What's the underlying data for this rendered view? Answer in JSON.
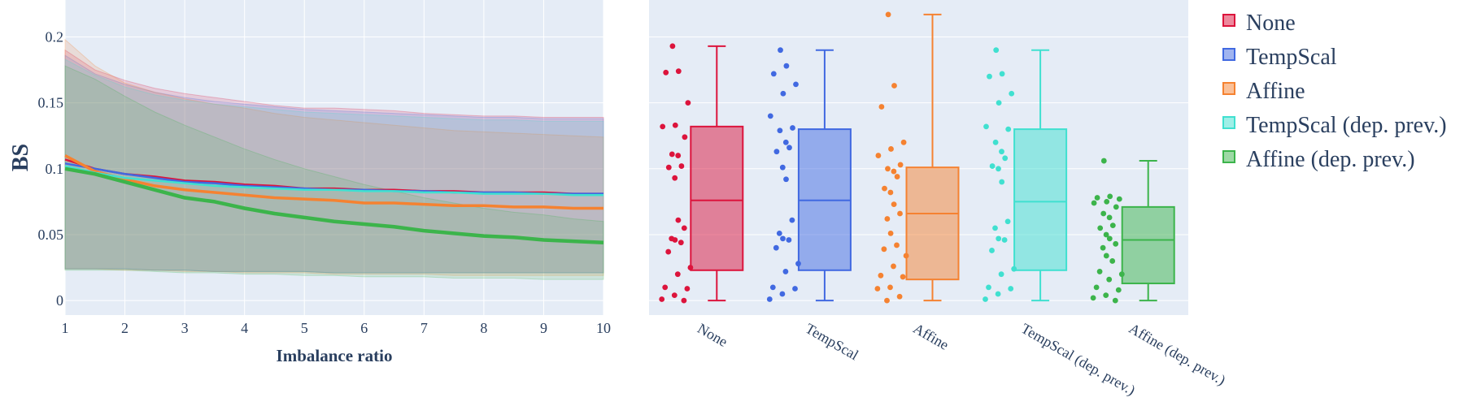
{
  "chart_data": [
    {
      "type": "line",
      "xlabel": "Imbalance ratio",
      "ylabel": "BS",
      "xlim": [
        1,
        10
      ],
      "ylim": [
        -0.011,
        0.228
      ],
      "xticks": [
        1,
        2,
        3,
        4,
        5,
        6,
        7,
        8,
        9,
        10
      ],
      "yticks": [
        0,
        0.05,
        0.1,
        0.15,
        0.2
      ],
      "ytick_labels": [
        "0",
        "0.05",
        "0.1",
        "0.15",
        "0.2"
      ],
      "grid": true,
      "background": "#e5ecf6",
      "x": [
        1,
        1.5,
        2,
        2.5,
        3,
        3.5,
        4,
        4.5,
        5,
        5.5,
        6,
        6.5,
        7,
        7.5,
        8,
        8.5,
        9,
        9.5,
        10
      ],
      "series": [
        {
          "name": "None",
          "color": "#dc143c",
          "mean": [
            0.107,
            0.1,
            0.096,
            0.094,
            0.091,
            0.09,
            0.088,
            0.087,
            0.085,
            0.085,
            0.084,
            0.084,
            0.083,
            0.083,
            0.082,
            0.082,
            0.082,
            0.081,
            0.081
          ],
          "upper": [
            0.19,
            0.175,
            0.167,
            0.161,
            0.157,
            0.154,
            0.151,
            0.148,
            0.146,
            0.146,
            0.145,
            0.144,
            0.142,
            0.141,
            0.14,
            0.14,
            0.139,
            0.139,
            0.139
          ],
          "lower": [
            0.024,
            0.024,
            0.024,
            0.023,
            0.023,
            0.022,
            0.022,
            0.022,
            0.022,
            0.021,
            0.021,
            0.021,
            0.021,
            0.021,
            0.021,
            0.021,
            0.021,
            0.021,
            0.021
          ]
        },
        {
          "name": "TempScal",
          "color": "#4169e1",
          "mean": [
            0.104,
            0.1,
            0.096,
            0.093,
            0.09,
            0.089,
            0.087,
            0.086,
            0.085,
            0.084,
            0.084,
            0.083,
            0.083,
            0.082,
            0.082,
            0.082,
            0.081,
            0.081,
            0.081
          ],
          "upper": [
            0.186,
            0.172,
            0.164,
            0.158,
            0.154,
            0.151,
            0.149,
            0.147,
            0.145,
            0.144,
            0.143,
            0.142,
            0.141,
            0.14,
            0.139,
            0.139,
            0.138,
            0.138,
            0.138
          ],
          "lower": [
            0.024,
            0.024,
            0.024,
            0.023,
            0.023,
            0.022,
            0.022,
            0.022,
            0.022,
            0.021,
            0.021,
            0.021,
            0.021,
            0.021,
            0.021,
            0.021,
            0.021,
            0.021,
            0.021
          ]
        },
        {
          "name": "Affine",
          "color": "#f58231",
          "mean": [
            0.11,
            0.098,
            0.092,
            0.087,
            0.084,
            0.082,
            0.08,
            0.078,
            0.077,
            0.076,
            0.074,
            0.074,
            0.073,
            0.072,
            0.072,
            0.071,
            0.071,
            0.07,
            0.07
          ],
          "upper": [
            0.198,
            0.178,
            0.165,
            0.158,
            0.153,
            0.149,
            0.146,
            0.142,
            0.139,
            0.137,
            0.135,
            0.133,
            0.131,
            0.129,
            0.128,
            0.127,
            0.126,
            0.125,
            0.124
          ],
          "lower": [
            0.024,
            0.024,
            0.023,
            0.023,
            0.022,
            0.022,
            0.021,
            0.021,
            0.021,
            0.02,
            0.02,
            0.02,
            0.02,
            0.019,
            0.019,
            0.019,
            0.019,
            0.019,
            0.019
          ]
        },
        {
          "name": "TempScal (dep. prev.)",
          "color": "#40e0d0",
          "mean": [
            0.102,
            0.097,
            0.093,
            0.091,
            0.089,
            0.087,
            0.086,
            0.085,
            0.084,
            0.084,
            0.083,
            0.083,
            0.082,
            0.082,
            0.081,
            0.081,
            0.081,
            0.08,
            0.08
          ],
          "upper": [
            0.183,
            0.171,
            0.162,
            0.156,
            0.152,
            0.149,
            0.147,
            0.145,
            0.143,
            0.142,
            0.141,
            0.14,
            0.139,
            0.138,
            0.137,
            0.137,
            0.136,
            0.136,
            0.136
          ],
          "lower": [
            0.024,
            0.024,
            0.024,
            0.023,
            0.023,
            0.022,
            0.022,
            0.022,
            0.022,
            0.021,
            0.021,
            0.021,
            0.021,
            0.021,
            0.021,
            0.021,
            0.021,
            0.021,
            0.021
          ]
        },
        {
          "name": "Affine (dep. prev.)",
          "color": "#3cb44b",
          "mean": [
            0.1,
            0.096,
            0.09,
            0.084,
            0.078,
            0.075,
            0.07,
            0.066,
            0.063,
            0.06,
            0.058,
            0.056,
            0.053,
            0.051,
            0.049,
            0.048,
            0.046,
            0.045,
            0.044
          ],
          "upper": [
            0.178,
            0.168,
            0.155,
            0.143,
            0.133,
            0.124,
            0.115,
            0.107,
            0.1,
            0.094,
            0.088,
            0.083,
            0.078,
            0.074,
            0.07,
            0.067,
            0.065,
            0.062,
            0.06
          ],
          "lower": [
            0.023,
            0.023,
            0.023,
            0.022,
            0.021,
            0.021,
            0.02,
            0.02,
            0.019,
            0.019,
            0.018,
            0.018,
            0.018,
            0.017,
            0.017,
            0.017,
            0.016,
            0.016,
            0.016
          ]
        }
      ]
    },
    {
      "type": "box",
      "ylim": [
        -0.011,
        0.228
      ],
      "yticks": [
        0,
        0.05,
        0.1,
        0.15,
        0.2
      ],
      "grid": true,
      "background": "#e5ecf6",
      "boxpoints": "all",
      "categories": [
        "None",
        "TempScal",
        "Affine",
        "TempScal (dep. prev.)",
        "Affine (dep. prev.)"
      ],
      "series": [
        {
          "name": "None",
          "color": "#dc143c",
          "min": 0.0,
          "q1": 0.023,
          "median": 0.076,
          "q3": 0.132,
          "max": 0.193,
          "points": [
            0.193,
            0.174,
            0.173,
            0.15,
            0.133,
            0.132,
            0.124,
            0.111,
            0.11,
            0.102,
            0.101,
            0.093,
            0.061,
            0.055,
            0.047,
            0.046,
            0.044,
            0.037,
            0.025,
            0.02,
            0.01,
            0.009,
            0.004,
            0.001,
            0.0
          ]
        },
        {
          "name": "TempScal",
          "color": "#4169e1",
          "min": 0.0,
          "q1": 0.023,
          "median": 0.076,
          "q3": 0.13,
          "max": 0.19,
          "points": [
            0.19,
            0.178,
            0.172,
            0.164,
            0.157,
            0.14,
            0.131,
            0.129,
            0.12,
            0.116,
            0.113,
            0.101,
            0.092,
            0.061,
            0.051,
            0.047,
            0.046,
            0.04,
            0.028,
            0.022,
            0.01,
            0.009,
            0.005,
            0.001
          ]
        },
        {
          "name": "Affine",
          "color": "#f58231",
          "min": 0.0,
          "q1": 0.016,
          "median": 0.066,
          "q3": 0.101,
          "max": 0.217,
          "points": [
            0.217,
            0.163,
            0.147,
            0.12,
            0.115,
            0.11,
            0.103,
            0.1,
            0.098,
            0.094,
            0.085,
            0.082,
            0.073,
            0.066,
            0.062,
            0.051,
            0.042,
            0.039,
            0.034,
            0.026,
            0.019,
            0.018,
            0.01,
            0.009,
            0.003,
            0.0
          ]
        },
        {
          "name": "TempScal (dep. prev.)",
          "color": "#40e0d0",
          "min": 0.0,
          "q1": 0.023,
          "median": 0.075,
          "q3": 0.13,
          "max": 0.19,
          "points": [
            0.19,
            0.172,
            0.17,
            0.157,
            0.15,
            0.132,
            0.13,
            0.12,
            0.113,
            0.108,
            0.102,
            0.1,
            0.09,
            0.06,
            0.055,
            0.047,
            0.046,
            0.038,
            0.024,
            0.02,
            0.01,
            0.009,
            0.005,
            0.001
          ]
        },
        {
          "name": "Affine (dep. prev.)",
          "color": "#3cb44b",
          "min": 0.0,
          "q1": 0.013,
          "median": 0.046,
          "q3": 0.071,
          "max": 0.106,
          "points": [
            0.106,
            0.079,
            0.078,
            0.077,
            0.075,
            0.074,
            0.071,
            0.066,
            0.063,
            0.057,
            0.055,
            0.05,
            0.047,
            0.043,
            0.04,
            0.034,
            0.03,
            0.022,
            0.02,
            0.016,
            0.01,
            0.008,
            0.004,
            0.002,
            0.0
          ]
        }
      ]
    }
  ],
  "legend": {
    "placement": "right",
    "items": [
      "None",
      "TempScal",
      "Affine",
      "TempScal (dep. prev.)",
      "Affine (dep. prev.)"
    ]
  }
}
